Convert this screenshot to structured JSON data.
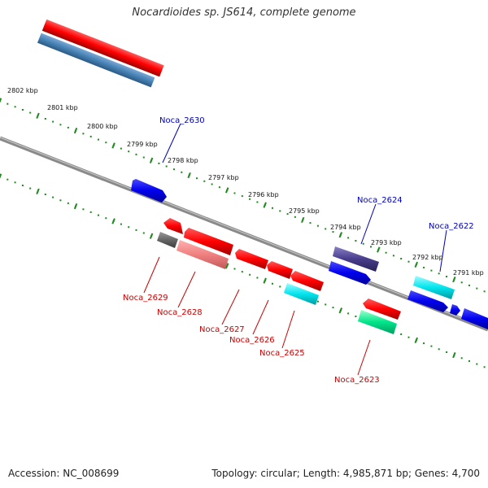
{
  "title": "Nocardioides sp. JS614, complete genome",
  "footer": {
    "accession": "Accession: NC_008699",
    "topology": "Topology: circular; Length: 4,985,871 bp; Genes: 4,700"
  },
  "colors": {
    "forward_label": "#0000bb",
    "reverse_label": "#cc0000",
    "backbone": "#8a8a8a",
    "dots": "#1e8a1e"
  },
  "kbp_ticks": [
    "2802 kbp",
    "2801 kbp",
    "2800 kbp",
    "2799 kbp",
    "2798 kbp",
    "2797 kbp",
    "2796 kbp",
    "2795 kbp",
    "2794 kbp",
    "2793 kbp",
    "2792 kbp",
    "2791 kbp"
  ],
  "gene_labels": [
    {
      "text": "Noca_2630",
      "strand": "forward"
    },
    {
      "text": "Noca_2624",
      "strand": "forward"
    },
    {
      "text": "Noca_2622",
      "strand": "forward"
    },
    {
      "text": "Noca_2629",
      "strand": "reverse"
    },
    {
      "text": "Noca_2628",
      "strand": "reverse"
    },
    {
      "text": "Noca_2627",
      "strand": "reverse"
    },
    {
      "text": "Noca_2626",
      "strand": "reverse"
    },
    {
      "text": "Noca_2625",
      "strand": "reverse"
    },
    {
      "text": "Noca_2623",
      "strand": "reverse"
    }
  ]
}
